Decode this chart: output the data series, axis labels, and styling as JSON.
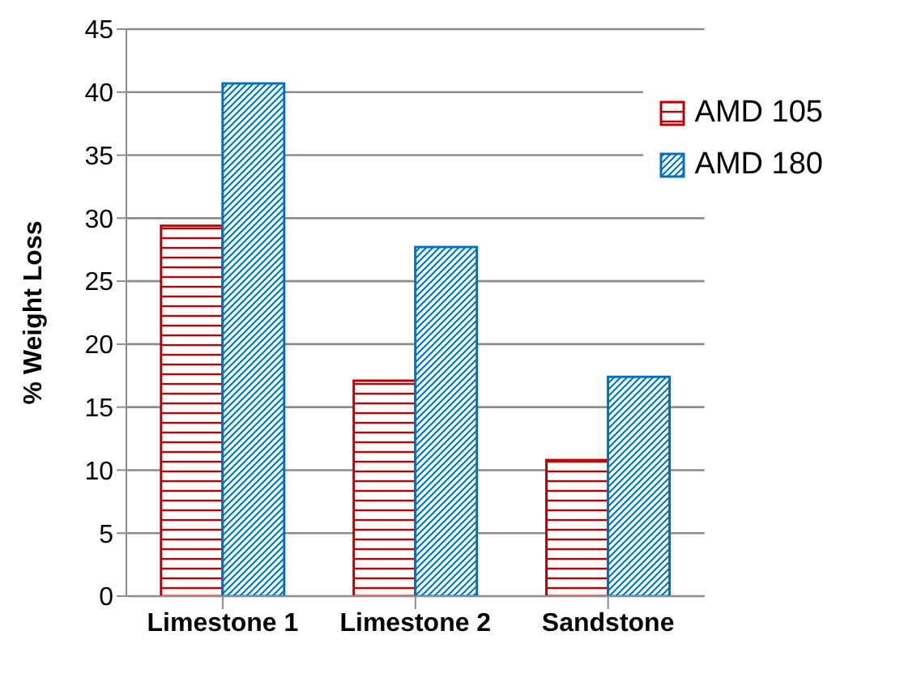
{
  "chart_data": {
    "type": "bar",
    "ylabel": "% Weight Loss",
    "categories": [
      "Limestone 1",
      "Limestone 2",
      "Sandstone"
    ],
    "series": [
      {
        "name": "AMD 105",
        "color": "#c00000",
        "values": [
          29.4,
          17.1,
          10.8
        ]
      },
      {
        "name": "AMD 180",
        "color": "#0070c0",
        "values": [
          40.7,
          27.7,
          17.4
        ]
      }
    ],
    "ylim": [
      0,
      45
    ],
    "yticks": [
      0,
      5,
      10,
      15,
      20,
      25,
      30,
      35,
      40,
      45
    ],
    "grid": "y",
    "legend": "top right"
  }
}
